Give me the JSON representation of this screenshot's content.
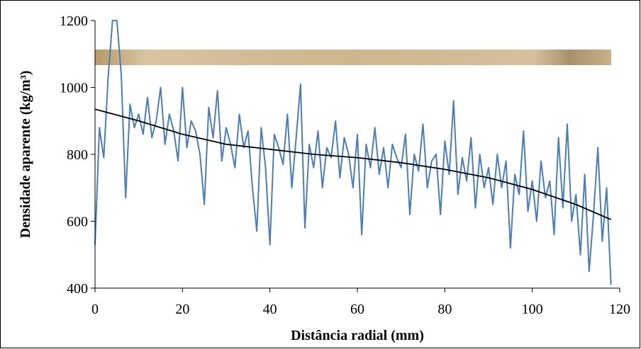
{
  "chart_data": {
    "type": "line",
    "x_label": "Distância radial (mm)",
    "y_label": "Densidade aparente (kg/m³)",
    "xlim": [
      0,
      120
    ],
    "xticks": [
      0,
      20,
      40,
      60,
      80,
      100,
      120
    ],
    "ylim": [
      400,
      1200
    ],
    "yticks": [
      400,
      600,
      800,
      1000,
      1200
    ],
    "grid": false,
    "series": [
      {
        "color": "#4a7ebb",
        "x": [
          0,
          1,
          2,
          3,
          4,
          5,
          6,
          7,
          8,
          9,
          10,
          11,
          12,
          13,
          14,
          15,
          16,
          17,
          18,
          19,
          20,
          21,
          22,
          23,
          24,
          25,
          26,
          27,
          28,
          29,
          30,
          31,
          32,
          33,
          34,
          35,
          36,
          37,
          38,
          39,
          40,
          41,
          42,
          43,
          44,
          45,
          46,
          47,
          48,
          49,
          50,
          51,
          52,
          53,
          54,
          55,
          56,
          57,
          58,
          59,
          60,
          61,
          62,
          63,
          64,
          65,
          66,
          67,
          68,
          69,
          70,
          71,
          72,
          73,
          74,
          75,
          76,
          77,
          78,
          79,
          80,
          81,
          82,
          83,
          84,
          85,
          86,
          87,
          88,
          89,
          90,
          91,
          92,
          93,
          94,
          95,
          96,
          97,
          98,
          99,
          100,
          101,
          102,
          103,
          104,
          105,
          106,
          107,
          108,
          109,
          110,
          111,
          112,
          113,
          114,
          115,
          116,
          117,
          118
        ],
        "values": [
          530,
          880,
          790,
          1030,
          1200,
          1200,
          1040,
          670,
          950,
          880,
          920,
          860,
          970,
          850,
          900,
          1000,
          830,
          920,
          870,
          780,
          1000,
          820,
          900,
          870,
          800,
          650,
          940,
          850,
          990,
          780,
          880,
          830,
          760,
          920,
          820,
          870,
          700,
          570,
          880,
          760,
          530,
          860,
          820,
          770,
          920,
          700,
          850,
          1010,
          580,
          830,
          760,
          870,
          700,
          820,
          790,
          900,
          730,
          850,
          800,
          700,
          860,
          560,
          830,
          760,
          880,
          740,
          820,
          700,
          830,
          790,
          760,
          860,
          620,
          800,
          750,
          890,
          700,
          780,
          800,
          620,
          840,
          740,
          960,
          680,
          790,
          720,
          850,
          640,
          800,
          700,
          760,
          650,
          800,
          700,
          780,
          520,
          740,
          680,
          870,
          630,
          720,
          600,
          780,
          670,
          720,
          560,
          850,
          640,
          890,
          600,
          680,
          500,
          740,
          450,
          620,
          820,
          540,
          700,
          410
        ]
      },
      {
        "color": "#000000",
        "x": [
          0,
          10,
          20,
          30,
          40,
          50,
          60,
          70,
          80,
          90,
          100,
          110,
          118
        ],
        "values": [
          935,
          900,
          860,
          830,
          815,
          800,
          790,
          775,
          755,
          730,
          695,
          650,
          605
        ]
      }
    ]
  }
}
